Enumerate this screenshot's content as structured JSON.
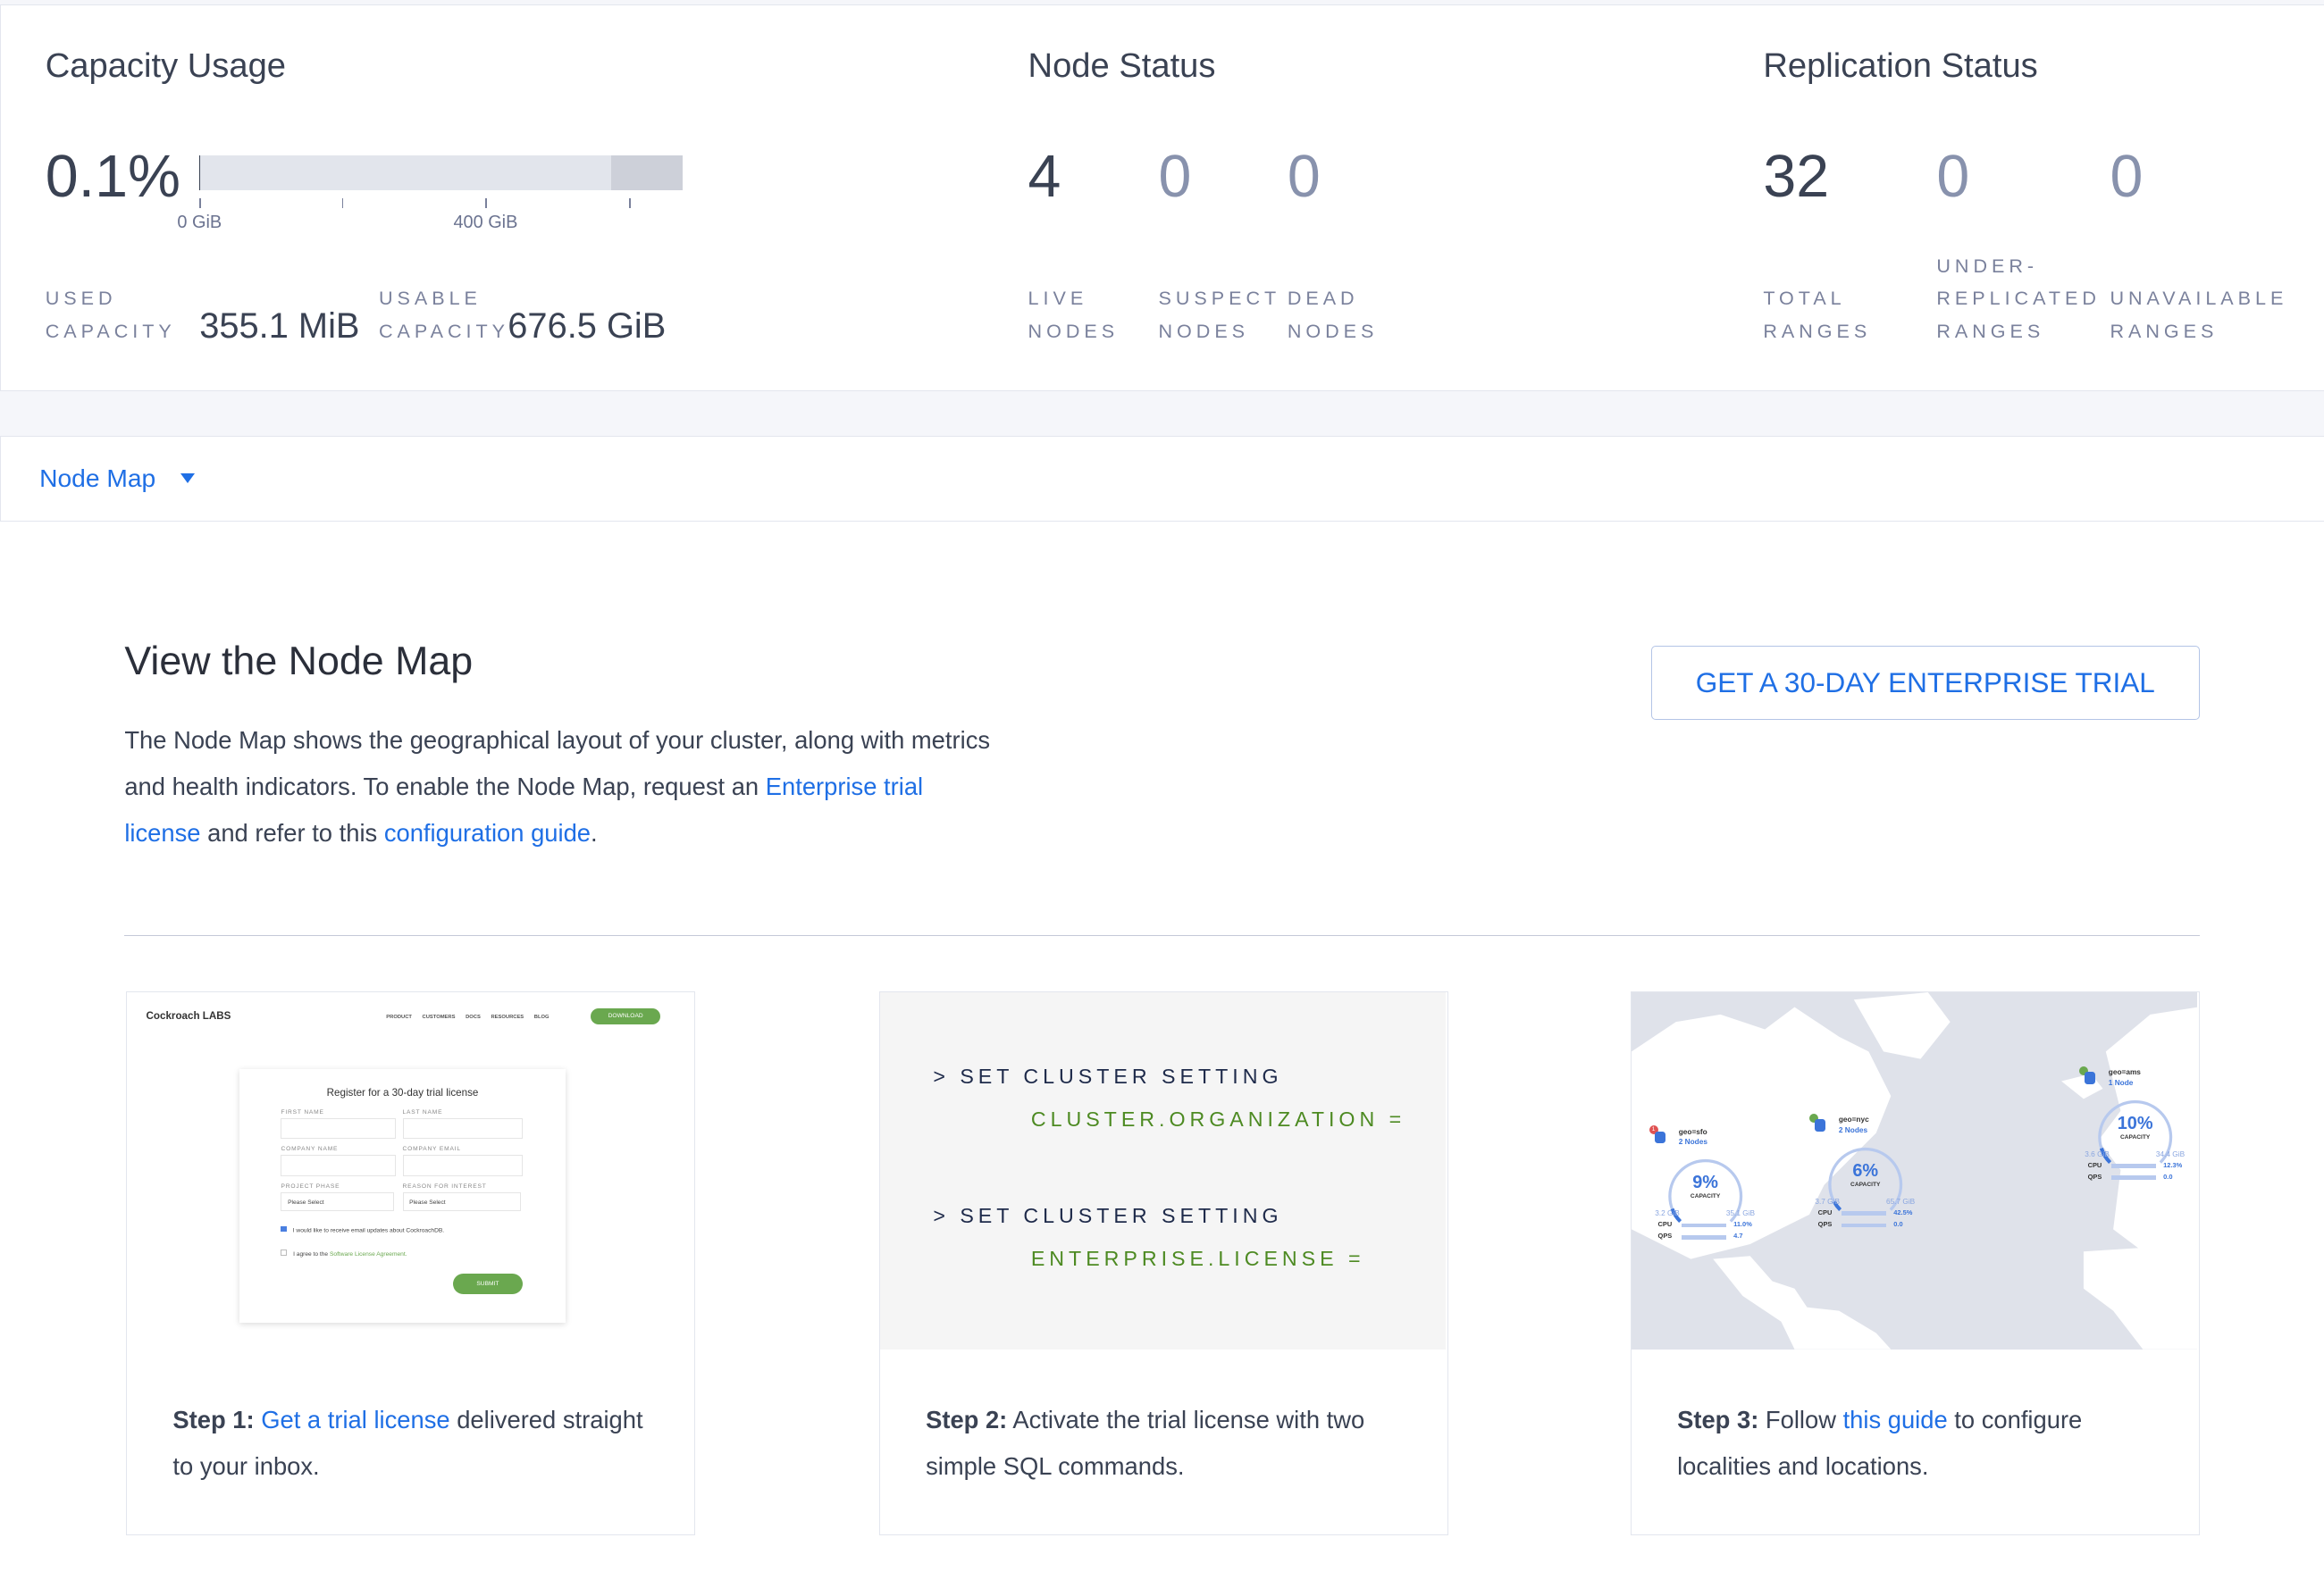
{
  "capacity": {
    "title": "Capacity Usage",
    "percent": "0.1%",
    "used_fraction": 0.001,
    "tick_labels": [
      "0 GiB",
      "400 GiB"
    ],
    "used_label": [
      "USED",
      "CAPACITY"
    ],
    "used_value": "355.1 MiB",
    "usable_label": [
      "USABLE",
      "CAPACITY"
    ],
    "usable_value": "676.5 GiB"
  },
  "node_status": {
    "title": "Node Status",
    "stats": [
      {
        "value": "4",
        "label": [
          "LIVE",
          "NODES"
        ]
      },
      {
        "value": "0",
        "label": [
          "SUSPECT",
          "NODES"
        ]
      },
      {
        "value": "0",
        "label": [
          "DEAD",
          "NODES"
        ]
      }
    ]
  },
  "replication_status": {
    "title": "Replication Status",
    "stats": [
      {
        "value": "32",
        "label": [
          "TOTAL",
          "RANGES"
        ]
      },
      {
        "value": "0",
        "label": [
          "UNDER-",
          "REPLICATED",
          "RANGES"
        ]
      },
      {
        "value": "0",
        "label": [
          "UNAVAILABLE",
          "RANGES"
        ]
      }
    ]
  },
  "dropdown": {
    "selected": "Node Map",
    "icon": "caret-down-icon"
  },
  "main": {
    "title": "View the Node Map",
    "para_1": "The Node Map shows the geographical layout of your cluster, along with metrics and health indicators. To enable the Node Map, request an ",
    "para_link_1": "Enterprise trial license",
    "para_2": " and refer to this ",
    "para_link_2": "configuration guide",
    "para_3": ".",
    "trial_button": "GET A 30-DAY ENTERPRISE TRIAL"
  },
  "steps": [
    {
      "label": "Step 1:",
      "pre": " ",
      "link": "Get a trial license",
      "post": " delivered straight to your inbox."
    },
    {
      "label": "Step 2:",
      "pre": " Activate the trial license with two simple SQL commands.",
      "link": "",
      "post": ""
    },
    {
      "label": "Step 3:",
      "pre": " Follow ",
      "link": "this guide",
      "post": " to configure localities and locations."
    }
  ],
  "illustration_1": {
    "logo": "Cockroach LABS",
    "nav": [
      "PRODUCT",
      "CUSTOMERS",
      "DOCS",
      "RESOURCES",
      "BLOG"
    ],
    "download": "DOWNLOAD",
    "form_title": "Register for a 30-day trial license",
    "fields": [
      "FIRST NAME",
      "LAST NAME",
      "COMPANY NAME",
      "COMPANY EMAIL",
      "PROJECT PHASE",
      "REASON FOR INTEREST"
    ],
    "select_placeholder": "Please Select",
    "checkbox_1": "I would like to receive email updates about CockroachDB.",
    "checkbox_2_pre": "I agree to the ",
    "checkbox_2_link": "Software License Agreement.",
    "submit": "SUBMIT"
  },
  "illustration_2": {
    "lines": [
      {
        "cmd": "> SET CLUSTER SETTING",
        "arg": "CLUSTER.ORGANIZATION ="
      },
      {
        "cmd": "> SET CLUSTER SETTING",
        "arg": "ENTERPRISE.LICENSE ="
      }
    ]
  },
  "illustration_3": {
    "regions": [
      {
        "name": "geo=sfo",
        "nodes": "2 Nodes",
        "pct": "9%",
        "cap": "CAPACITY",
        "used": "3.2 GiB",
        "total": "35.1 GiB",
        "cpu": "11.0%",
        "qps": "4.7",
        "badge": "1",
        "fill": 0.09
      },
      {
        "name": "geo=nyc",
        "nodes": "2 Nodes",
        "pct": "6%",
        "cap": "CAPACITY",
        "used": "3.7 GiB",
        "total": "65.7 GiB",
        "cpu": "42.5%",
        "qps": "0.0",
        "badge": "",
        "fill": 0.06
      },
      {
        "name": "geo=ams",
        "nodes": "1 Node",
        "pct": "10%",
        "cap": "CAPACITY",
        "used": "3.6 GiB",
        "total": "34.4 GiB",
        "cpu": "12.3%",
        "qps": "0.0",
        "badge": "",
        "fill": 0.1
      }
    ],
    "cpu_label": "CPU",
    "qps_label": "QPS"
  },
  "colors": {
    "accent": "#1f6fe5",
    "green": "#6aa84f",
    "text": "#3a4253",
    "muted": "#7a819c"
  }
}
